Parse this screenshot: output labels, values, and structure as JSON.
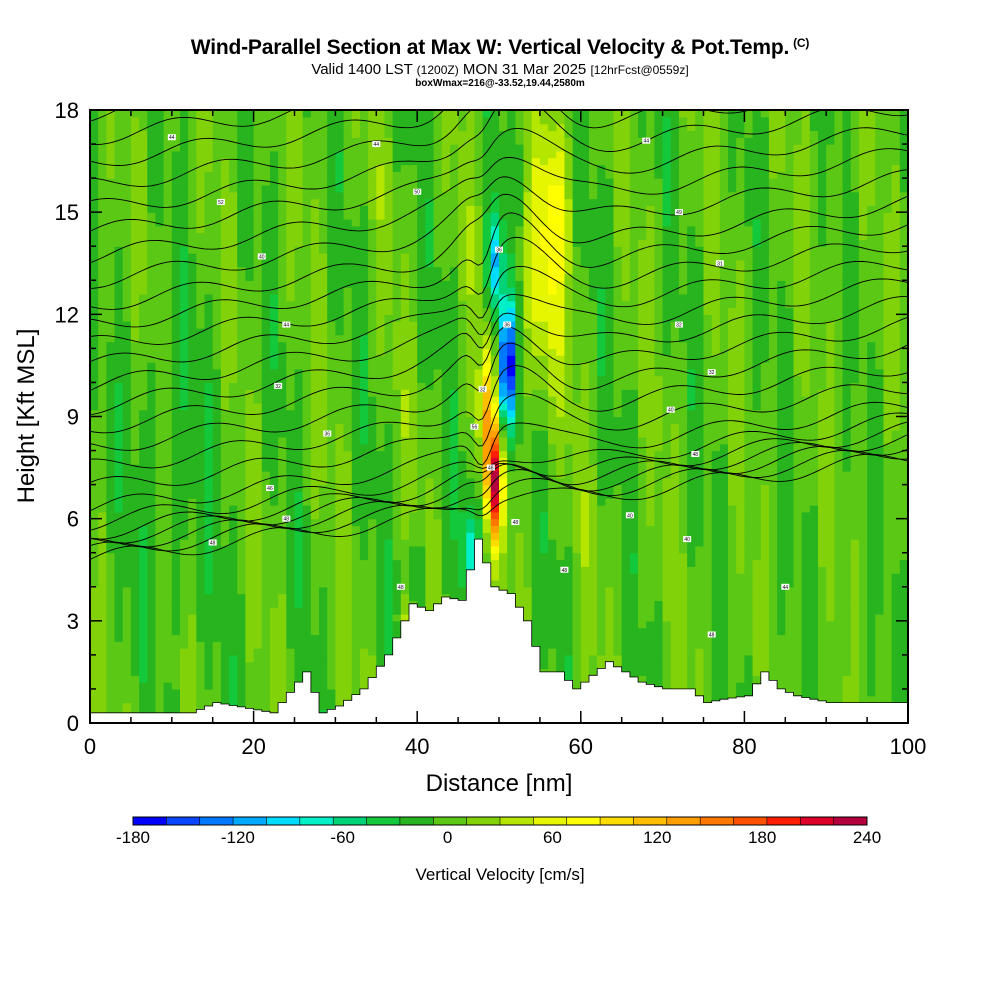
{
  "header": {
    "title": "Wind-Parallel Section at Max W: Vertical Velocity & Pot.Temp.",
    "title_mark": "(C)",
    "valid_prefix": "Valid 1400 LST",
    "utc": "(1200Z)",
    "valid_date": "MON 31 Mar 2025",
    "forecast": "[12hrFcst@0559z]",
    "box_info": "boxWmax=216@-33.52,19.44,2580m"
  },
  "chart_data": {
    "type": "heatmap",
    "title": "Wind-Parallel Section at Max W: Vertical Velocity & Pot.Temp.",
    "xlabel": "Distance [nm]",
    "ylabel": "Height [Kft MSL]",
    "xlim": [
      0,
      100
    ],
    "ylim": [
      0,
      18
    ],
    "x_ticks": [
      0,
      20,
      40,
      60,
      80,
      100
    ],
    "y_ticks": [
      0,
      3,
      6,
      9,
      12,
      15,
      18
    ],
    "colorbar": {
      "title": "Vertical Velocity [cm/s]",
      "min": -180,
      "max": 240,
      "step": 20,
      "tick_labels": [
        -180,
        -120,
        -60,
        0,
        60,
        120,
        180,
        240
      ],
      "colors": [
        "#0000ff",
        "#0a46ff",
        "#0078ff",
        "#00aaff",
        "#00dcff",
        "#00f0c8",
        "#00d278",
        "#14c83c",
        "#28b41e",
        "#5ac814",
        "#82d20a",
        "#b4e600",
        "#e6f500",
        "#ffff00",
        "#ffdc00",
        "#ffbe00",
        "#ffa000",
        "#ff7800",
        "#ff5000",
        "#ff1e00",
        "#dc0028",
        "#b4003c"
      ]
    },
    "features": {
      "updraft_max_cm_s": 216,
      "updraft_location_nm": 49.5,
      "updraft_height_kft": 7.0,
      "downdraft_min_cm_s": -180,
      "downdraft_location_nm": 51,
      "downdraft_height_kft": 10.5,
      "ridge_peak_nm": 47,
      "ridge_peak_kft": 5.4
    },
    "terrain_profile": {
      "distance_nm": [
        0,
        12,
        15,
        22,
        26,
        28,
        30,
        33,
        36,
        39,
        41,
        43,
        45,
        47,
        49,
        51,
        53,
        55,
        57,
        59,
        63,
        67,
        70,
        73,
        75,
        77,
        80,
        82,
        84,
        86,
        90,
        100
      ],
      "height_kft": [
        0.3,
        0.3,
        0.6,
        0.3,
        1.5,
        0.3,
        0.5,
        1.0,
        2.0,
        3.5,
        3.3,
        3.7,
        3.6,
        5.4,
        4.0,
        3.8,
        3.0,
        1.5,
        1.5,
        1.0,
        1.8,
        1.2,
        1.0,
        1.0,
        0.6,
        0.7,
        0.8,
        1.5,
        1.0,
        0.8,
        0.6,
        0.6
      ]
    },
    "theta_contour_labels": [
      "44",
      "44",
      "44",
      "52",
      "50",
      "49",
      "40",
      "36",
      "31",
      "44",
      "36",
      "32",
      "32",
      "32",
      "32",
      "36",
      "56",
      "40",
      "46",
      "48",
      "48",
      "48",
      "48",
      "40",
      "48",
      "40",
      "48",
      "48",
      "48",
      "44"
    ]
  }
}
